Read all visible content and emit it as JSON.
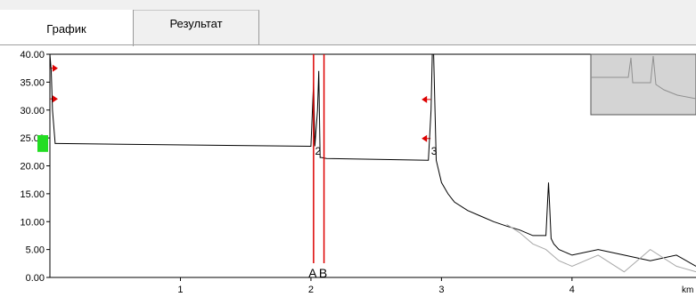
{
  "tabs": [
    {
      "label": "График"
    },
    {
      "label": "Результат"
    }
  ],
  "chart_data": {
    "type": "line",
    "xlabel": "km",
    "ylabel": "",
    "xlim": [
      0,
      4.95
    ],
    "ylim": [
      0,
      40
    ],
    "y_ticks": [
      "40.00",
      "35.00",
      "30.00",
      "25.00",
      "20.00",
      "15.00",
      "10.00",
      "5.00",
      "0.00"
    ],
    "x_ticks": [
      "1",
      "2",
      "3",
      "4"
    ],
    "grid": false,
    "markers": [
      {
        "label": "A",
        "x": 2.02
      },
      {
        "label": "B",
        "x": 2.1
      }
    ],
    "events": [
      {
        "label": "2",
        "x": 2.04
      },
      {
        "label": "3",
        "x": 2.93
      }
    ],
    "series": [
      {
        "color": "#000000",
        "x": [
          0.0,
          0.01,
          0.02,
          0.04,
          0.05,
          0.06,
          2.0,
          2.02,
          2.03,
          2.05,
          2.06,
          2.07,
          2.08,
          2.1,
          2.12,
          2.9,
          2.92,
          2.93,
          2.94,
          2.96,
          3.0,
          3.05,
          3.1,
          3.2,
          3.3,
          3.4,
          3.5,
          3.6,
          3.7,
          3.8,
          3.82,
          3.83,
          3.84,
          3.86,
          3.9,
          4.0,
          4.2,
          4.4,
          4.6,
          4.8,
          4.95
        ],
        "y": [
          40,
          37,
          30,
          24,
          24,
          24,
          23.5,
          35,
          23.5,
          30,
          37,
          21.5,
          21.5,
          21.4,
          21.3,
          21,
          30,
          40,
          40,
          21,
          17,
          15,
          13.5,
          12,
          11,
          10,
          9.2,
          8.5,
          7.5,
          7.5,
          17,
          12,
          7,
          6,
          5,
          4,
          5,
          4,
          3,
          4,
          2
        ]
      },
      {
        "color": "#a8a8a8",
        "x": [
          3.5,
          3.6,
          3.7,
          3.8,
          3.9,
          4.0,
          4.2,
          4.4,
          4.6,
          4.8,
          4.95
        ],
        "y": [
          9.5,
          8,
          6,
          5,
          3,
          2,
          4,
          1,
          5,
          2,
          1
        ]
      }
    ]
  }
}
